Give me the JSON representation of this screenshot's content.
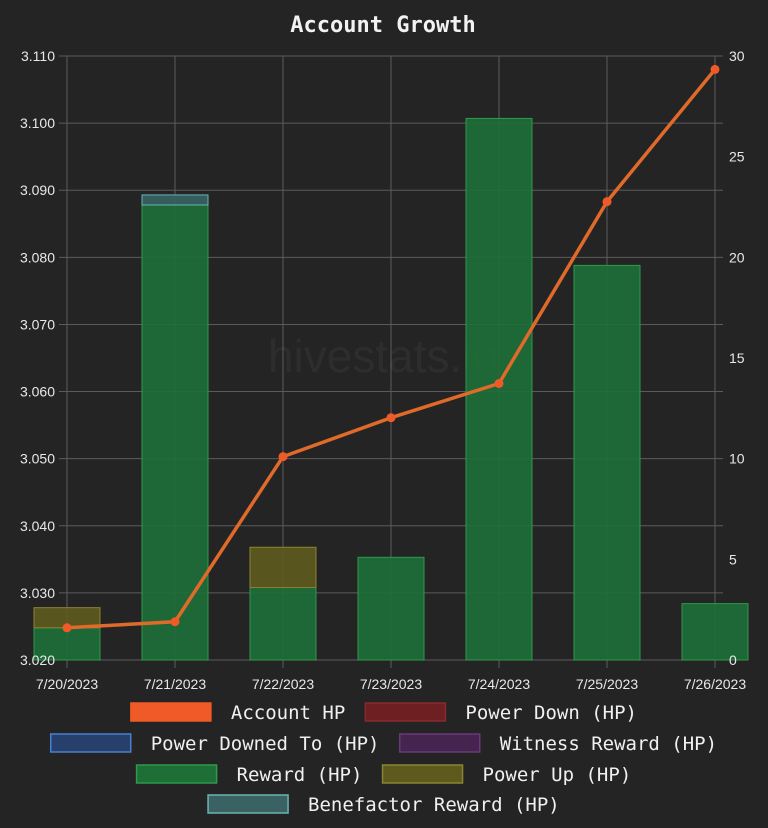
{
  "chart_data": {
    "type": "bar+line",
    "title": "Account Growth",
    "watermark": "hivestats.io",
    "categories": [
      "7/20/2023",
      "7/21/2023",
      "7/22/2023",
      "7/23/2023",
      "7/24/2023",
      "7/25/2023",
      "7/26/2023"
    ],
    "left_axis": {
      "min": 3.02,
      "max": 3.11,
      "ticks": [
        "3.020",
        "3.030",
        "3.040",
        "3.050",
        "3.060",
        "3.070",
        "3.080",
        "3.090",
        "3.100",
        "3.110"
      ]
    },
    "right_axis": {
      "min": 0,
      "max": 30,
      "ticks": [
        "0",
        "5",
        "10",
        "15",
        "20",
        "25",
        "30"
      ]
    },
    "grid": true,
    "legend_position": "bottom",
    "series": [
      {
        "name": "Account HP",
        "type": "line",
        "axis": "left",
        "color": "#f05a28",
        "line_color": "#e06a2a",
        "values": [
          3.0248,
          3.0257,
          3.0503,
          3.0561,
          3.0612,
          3.0883,
          3.108
        ]
      },
      {
        "name": "Power Down (HP)",
        "type": "bar",
        "axis": "right",
        "fill": "#6e1f22",
        "stroke": "#8a2a2e",
        "values": [
          0,
          0,
          0,
          0,
          0,
          0,
          0
        ]
      },
      {
        "name": "Power Downed To (HP)",
        "type": "bar",
        "axis": "right",
        "fill": "#27406b",
        "stroke": "#4a7fd0",
        "values": [
          0,
          0,
          0,
          0,
          0,
          0,
          0
        ]
      },
      {
        "name": "Witness Reward (HP)",
        "type": "bar",
        "axis": "right",
        "fill": "#45244f",
        "stroke": "#6a3a78",
        "values": [
          0,
          0,
          0,
          0,
          0,
          0,
          0
        ]
      },
      {
        "name": "Reward (HP)",
        "type": "bar",
        "axis": "right",
        "fill": "#1d6f37",
        "stroke": "#2e9a4c",
        "values": [
          1.6,
          22.6,
          3.6,
          5.1,
          26.9,
          19.6,
          2.8
        ]
      },
      {
        "name": "Power Up (HP)",
        "type": "bar",
        "axis": "right",
        "fill": "#5e5a1e",
        "stroke": "#8a8430",
        "values": [
          1.0,
          0,
          2.0,
          0,
          0,
          0,
          0
        ]
      },
      {
        "name": "Benefactor Reward (HP)",
        "type": "bar",
        "axis": "right",
        "fill": "#3a6262",
        "stroke": "#6ab4b4",
        "values": [
          0,
          0.5,
          0,
          0,
          0,
          0,
          0
        ]
      }
    ]
  }
}
